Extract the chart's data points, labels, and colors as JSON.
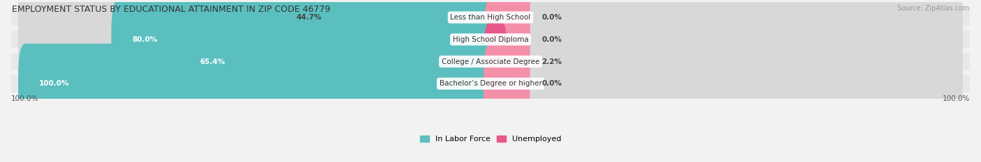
{
  "title": "EMPLOYMENT STATUS BY EDUCATIONAL ATTAINMENT IN ZIP CODE 46779",
  "source": "Source: ZipAtlas.com",
  "categories": [
    "Less than High School",
    "High School Diploma",
    "College / Associate Degree",
    "Bachelor’s Degree or higher"
  ],
  "labor_force_pct": [
    44.7,
    80.0,
    65.4,
    100.0
  ],
  "unemployed_pct": [
    0.0,
    0.0,
    2.2,
    0.0
  ],
  "labor_force_color": "#5BBFBF",
  "unemployed_color": "#F48FAA",
  "unemployed_color_strong": "#E8588A",
  "bg_color": "#F2F2F2",
  "bar_bg_color": "#E0E0E0",
  "row_bg_light": "#FAFAFA",
  "row_bg_dark": "#EEEEEE",
  "bar_height": 0.62,
  "left_label_100": "100.0%",
  "right_label_100": "100.0%",
  "legend_labor": "In Labor Force",
  "legend_unemployed": "Unemployed",
  "title_fontsize": 9,
  "source_fontsize": 7,
  "label_fontsize": 7.5,
  "cat_fontsize": 7.5
}
